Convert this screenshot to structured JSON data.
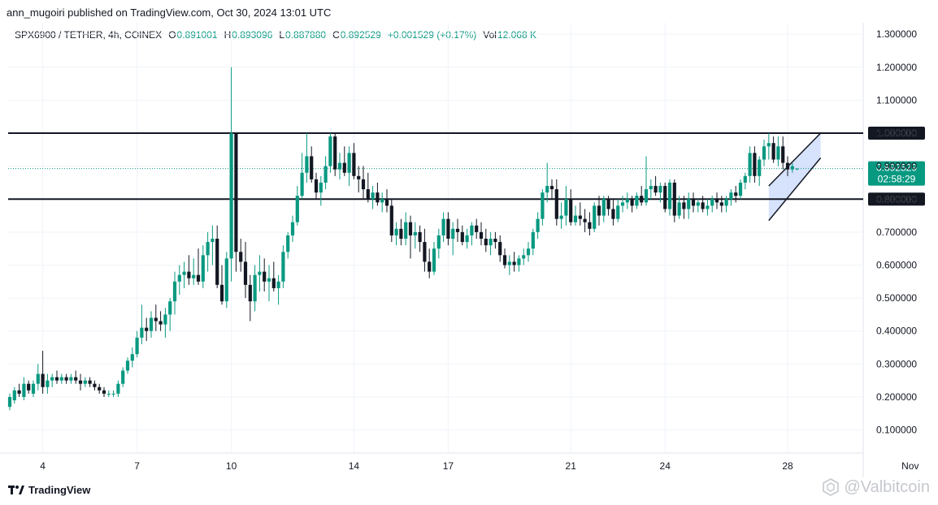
{
  "publisher_line": "ann_mugoiri published on TradingView.com, Oct 30, 2024 13:01 UTC",
  "legend": {
    "symbol": "SPX6900 / TETHER, 4h, COINEX",
    "open_label": "O",
    "open": "0.891001",
    "high_label": "H",
    "high": "0.893096",
    "low_label": "L",
    "low": "0.887880",
    "close_label": "C",
    "close": "0.892529",
    "change": "+0.001529 (+0.17%)",
    "vol_label": "Vol",
    "vol": "12.068 K"
  },
  "footer": {
    "brand": "TradingView",
    "logo_icon": "tradingview-logo-icon"
  },
  "watermark": {
    "text": "@Valbitcoin",
    "icon": "bitcoin-hex-icon"
  },
  "colors": {
    "up": "#089981",
    "down": "#131722",
    "grid": "#f0f3fa",
    "channel_fill": "#c9d8fb",
    "line": "#131722"
  },
  "chart_data": {
    "type": "candlestick",
    "title": "",
    "timeframe": "4h",
    "ylim": [
      0.03,
      1.33
    ],
    "y_ticks": [
      {
        "value": 0.1,
        "label": "0.100000"
      },
      {
        "value": 0.2,
        "label": "0.200000"
      },
      {
        "value": 0.3,
        "label": "0.300000"
      },
      {
        "value": 0.4,
        "label": "0.400000"
      },
      {
        "value": 0.5,
        "label": "0.500000"
      },
      {
        "value": 0.6,
        "label": "0.600000"
      },
      {
        "value": 0.7,
        "label": "0.700000"
      },
      {
        "value": 0.8,
        "label": "0.800000"
      },
      {
        "value": 0.9,
        "label": "0.900000"
      },
      {
        "value": 1.0,
        "label": "1.000000"
      },
      {
        "value": 1.1,
        "label": "1.100000"
      },
      {
        "value": 1.2,
        "label": "1.200000"
      },
      {
        "value": 1.3,
        "label": "1.300000"
      }
    ],
    "x_range": [
      0,
      190
    ],
    "x_ticks": [
      {
        "x": 7,
        "label": "4"
      },
      {
        "x": 27,
        "label": "7"
      },
      {
        "x": 47,
        "label": "10"
      },
      {
        "x": 73,
        "label": "14"
      },
      {
        "x": 93,
        "label": "17"
      },
      {
        "x": 119,
        "label": "21"
      },
      {
        "x": 139,
        "label": "24"
      },
      {
        "x": 165,
        "label": "28"
      },
      {
        "x": 191,
        "label": "Nov"
      }
    ],
    "horizontal_levels": [
      {
        "value": 1.0,
        "label": "1.000000"
      },
      {
        "value": 0.8,
        "label": "0.800000"
      }
    ],
    "last_price": {
      "value": 0.892529,
      "label": "0.892529",
      "countdown": "02:58:29"
    },
    "channel": {
      "lower_start": [
        161,
        0.735
      ],
      "lower_end": [
        172,
        0.925
      ],
      "upper_start": [
        161,
        0.84
      ],
      "upper_end": [
        172,
        1.0
      ]
    },
    "candles": [
      [
        0,
        0.17,
        0.21,
        0.16,
        0.2
      ],
      [
        1,
        0.19,
        0.23,
        0.18,
        0.22
      ],
      [
        2,
        0.22,
        0.24,
        0.2,
        0.21
      ],
      [
        3,
        0.2,
        0.26,
        0.19,
        0.24
      ],
      [
        4,
        0.24,
        0.25,
        0.21,
        0.22
      ],
      [
        5,
        0.21,
        0.25,
        0.2,
        0.24
      ],
      [
        6,
        0.24,
        0.3,
        0.22,
        0.27
      ],
      [
        7,
        0.27,
        0.34,
        0.21,
        0.23
      ],
      [
        8,
        0.23,
        0.27,
        0.21,
        0.25
      ],
      [
        9,
        0.25,
        0.27,
        0.23,
        0.26
      ],
      [
        10,
        0.26,
        0.28,
        0.24,
        0.25
      ],
      [
        11,
        0.25,
        0.27,
        0.24,
        0.26
      ],
      [
        12,
        0.26,
        0.27,
        0.24,
        0.25
      ],
      [
        13,
        0.25,
        0.27,
        0.24,
        0.26
      ],
      [
        14,
        0.26,
        0.28,
        0.24,
        0.25
      ],
      [
        15,
        0.25,
        0.27,
        0.22,
        0.24
      ],
      [
        16,
        0.24,
        0.26,
        0.23,
        0.25
      ],
      [
        17,
        0.25,
        0.26,
        0.23,
        0.24
      ],
      [
        18,
        0.24,
        0.25,
        0.22,
        0.23
      ],
      [
        19,
        0.23,
        0.24,
        0.21,
        0.22
      ],
      [
        20,
        0.22,
        0.23,
        0.2,
        0.21
      ],
      [
        21,
        0.21,
        0.22,
        0.2,
        0.21
      ],
      [
        22,
        0.21,
        0.22,
        0.2,
        0.21
      ],
      [
        23,
        0.21,
        0.25,
        0.2,
        0.24
      ],
      [
        24,
        0.24,
        0.29,
        0.23,
        0.28
      ],
      [
        25,
        0.28,
        0.32,
        0.27,
        0.31
      ],
      [
        26,
        0.31,
        0.35,
        0.29,
        0.33
      ],
      [
        27,
        0.33,
        0.4,
        0.32,
        0.38
      ],
      [
        28,
        0.38,
        0.48,
        0.36,
        0.41
      ],
      [
        29,
        0.41,
        0.44,
        0.37,
        0.4
      ],
      [
        30,
        0.4,
        0.46,
        0.38,
        0.44
      ],
      [
        31,
        0.44,
        0.48,
        0.4,
        0.43
      ],
      [
        32,
        0.43,
        0.46,
        0.4,
        0.42
      ],
      [
        33,
        0.42,
        0.47,
        0.38,
        0.45
      ],
      [
        34,
        0.45,
        0.5,
        0.4,
        0.49
      ],
      [
        35,
        0.49,
        0.58,
        0.45,
        0.55
      ],
      [
        36,
        0.55,
        0.6,
        0.51,
        0.57
      ],
      [
        37,
        0.57,
        0.61,
        0.53,
        0.58
      ],
      [
        38,
        0.58,
        0.63,
        0.54,
        0.56
      ],
      [
        39,
        0.56,
        0.62,
        0.54,
        0.57
      ],
      [
        40,
        0.57,
        0.65,
        0.54,
        0.55
      ],
      [
        41,
        0.55,
        0.66,
        0.53,
        0.63
      ],
      [
        42,
        0.63,
        0.7,
        0.58,
        0.67
      ],
      [
        43,
        0.67,
        0.72,
        0.6,
        0.68
      ],
      [
        44,
        0.68,
        0.72,
        0.53,
        0.54
      ],
      [
        45,
        0.54,
        0.6,
        0.48,
        0.49
      ],
      [
        46,
        0.49,
        0.64,
        0.47,
        0.62
      ],
      [
        47,
        0.62,
        1.2,
        0.55,
        1.0
      ],
      [
        48,
        1.0,
        1.0,
        0.58,
        0.64
      ],
      [
        49,
        0.64,
        0.68,
        0.58,
        0.61
      ],
      [
        50,
        0.61,
        0.67,
        0.5,
        0.54
      ],
      [
        51,
        0.54,
        0.57,
        0.43,
        0.49
      ],
      [
        52,
        0.49,
        0.6,
        0.46,
        0.57
      ],
      [
        53,
        0.57,
        0.63,
        0.52,
        0.58
      ],
      [
        54,
        0.58,
        0.62,
        0.52,
        0.55
      ],
      [
        55,
        0.55,
        0.6,
        0.49,
        0.56
      ],
      [
        56,
        0.56,
        0.61,
        0.52,
        0.53
      ],
      [
        57,
        0.53,
        0.57,
        0.48,
        0.55
      ],
      [
        58,
        0.55,
        0.66,
        0.53,
        0.64
      ],
      [
        59,
        0.64,
        0.7,
        0.62,
        0.69
      ],
      [
        60,
        0.69,
        0.75,
        0.67,
        0.73
      ],
      [
        61,
        0.73,
        0.84,
        0.72,
        0.81
      ],
      [
        62,
        0.81,
        0.94,
        0.8,
        0.88
      ],
      [
        63,
        0.88,
        1.0,
        0.85,
        0.93
      ],
      [
        64,
        0.93,
        0.96,
        0.85,
        0.86
      ],
      [
        65,
        0.86,
        0.88,
        0.8,
        0.82
      ],
      [
        66,
        0.82,
        0.87,
        0.78,
        0.85
      ],
      [
        67,
        0.85,
        0.93,
        0.83,
        0.9
      ],
      [
        68,
        0.9,
        1.0,
        0.88,
        0.99
      ],
      [
        69,
        0.99,
        1.0,
        0.87,
        0.89
      ],
      [
        70,
        0.89,
        0.94,
        0.86,
        0.91
      ],
      [
        71,
        0.91,
        0.96,
        0.87,
        0.88
      ],
      [
        72,
        0.88,
        0.96,
        0.84,
        0.94
      ],
      [
        73,
        0.94,
        0.97,
        0.86,
        0.87
      ],
      [
        74,
        0.87,
        0.9,
        0.82,
        0.86
      ],
      [
        75,
        0.86,
        0.9,
        0.8,
        0.83
      ],
      [
        76,
        0.83,
        0.88,
        0.79,
        0.8
      ],
      [
        77,
        0.8,
        0.84,
        0.77,
        0.82
      ],
      [
        78,
        0.82,
        0.85,
        0.78,
        0.79
      ],
      [
        79,
        0.79,
        0.82,
        0.76,
        0.8
      ],
      [
        80,
        0.8,
        0.83,
        0.76,
        0.78
      ],
      [
        81,
        0.78,
        0.8,
        0.67,
        0.69
      ],
      [
        82,
        0.69,
        0.73,
        0.66,
        0.71
      ],
      [
        83,
        0.71,
        0.74,
        0.66,
        0.68
      ],
      [
        84,
        0.68,
        0.76,
        0.66,
        0.73
      ],
      [
        85,
        0.73,
        0.75,
        0.62,
        0.69
      ],
      [
        86,
        0.69,
        0.73,
        0.65,
        0.7
      ],
      [
        87,
        0.7,
        0.72,
        0.64,
        0.67
      ],
      [
        88,
        0.67,
        0.71,
        0.58,
        0.61
      ],
      [
        89,
        0.61,
        0.65,
        0.56,
        0.58
      ],
      [
        90,
        0.58,
        0.67,
        0.57,
        0.65
      ],
      [
        91,
        0.65,
        0.71,
        0.62,
        0.69
      ],
      [
        92,
        0.69,
        0.76,
        0.67,
        0.74
      ],
      [
        93,
        0.74,
        0.76,
        0.66,
        0.68
      ],
      [
        94,
        0.68,
        0.73,
        0.63,
        0.71
      ],
      [
        95,
        0.71,
        0.74,
        0.67,
        0.7
      ],
      [
        96,
        0.7,
        0.72,
        0.66,
        0.67
      ],
      [
        97,
        0.67,
        0.71,
        0.65,
        0.69
      ],
      [
        98,
        0.69,
        0.73,
        0.66,
        0.72
      ],
      [
        99,
        0.72,
        0.74,
        0.68,
        0.7
      ],
      [
        100,
        0.7,
        0.73,
        0.66,
        0.68
      ],
      [
        101,
        0.68,
        0.71,
        0.64,
        0.66
      ],
      [
        102,
        0.66,
        0.7,
        0.63,
        0.68
      ],
      [
        103,
        0.68,
        0.7,
        0.65,
        0.67
      ],
      [
        104,
        0.67,
        0.69,
        0.61,
        0.63
      ],
      [
        105,
        0.63,
        0.65,
        0.59,
        0.6
      ],
      [
        106,
        0.6,
        0.63,
        0.57,
        0.61
      ],
      [
        107,
        0.61,
        0.64,
        0.58,
        0.6
      ],
      [
        108,
        0.6,
        0.63,
        0.58,
        0.62
      ],
      [
        109,
        0.62,
        0.65,
        0.6,
        0.63
      ],
      [
        110,
        0.63,
        0.67,
        0.61,
        0.65
      ],
      [
        111,
        0.65,
        0.71,
        0.63,
        0.7
      ],
      [
        112,
        0.7,
        0.76,
        0.68,
        0.74
      ],
      [
        113,
        0.74,
        0.83,
        0.72,
        0.82
      ],
      [
        114,
        0.82,
        0.91,
        0.79,
        0.84
      ],
      [
        115,
        0.84,
        0.86,
        0.8,
        0.83
      ],
      [
        116,
        0.83,
        0.86,
        0.72,
        0.74
      ],
      [
        117,
        0.74,
        0.79,
        0.71,
        0.75
      ],
      [
        118,
        0.75,
        0.84,
        0.72,
        0.8
      ],
      [
        119,
        0.8,
        0.83,
        0.72,
        0.73
      ],
      [
        120,
        0.73,
        0.78,
        0.72,
        0.75
      ],
      [
        121,
        0.75,
        0.79,
        0.72,
        0.74
      ],
      [
        122,
        0.74,
        0.77,
        0.7,
        0.73
      ],
      [
        123,
        0.73,
        0.76,
        0.69,
        0.71
      ],
      [
        124,
        0.71,
        0.79,
        0.7,
        0.78
      ],
      [
        125,
        0.78,
        0.81,
        0.72,
        0.75
      ],
      [
        126,
        0.75,
        0.81,
        0.73,
        0.8
      ],
      [
        127,
        0.8,
        0.81,
        0.75,
        0.77
      ],
      [
        128,
        0.77,
        0.8,
        0.72,
        0.74
      ],
      [
        129,
        0.74,
        0.8,
        0.73,
        0.78
      ],
      [
        130,
        0.78,
        0.81,
        0.76,
        0.79
      ],
      [
        131,
        0.79,
        0.82,
        0.77,
        0.8
      ],
      [
        132,
        0.8,
        0.81,
        0.76,
        0.78
      ],
      [
        133,
        0.78,
        0.82,
        0.77,
        0.81
      ],
      [
        134,
        0.81,
        0.84,
        0.78,
        0.79
      ],
      [
        135,
        0.79,
        0.93,
        0.78,
        0.83
      ],
      [
        136,
        0.83,
        0.86,
        0.8,
        0.84
      ],
      [
        137,
        0.84,
        0.87,
        0.81,
        0.82
      ],
      [
        138,
        0.82,
        0.85,
        0.79,
        0.84
      ],
      [
        139,
        0.84,
        0.85,
        0.76,
        0.77
      ],
      [
        140,
        0.77,
        0.86,
        0.75,
        0.85
      ],
      [
        141,
        0.85,
        0.86,
        0.73,
        0.75
      ],
      [
        142,
        0.75,
        0.81,
        0.74,
        0.79
      ],
      [
        143,
        0.79,
        0.81,
        0.74,
        0.77
      ],
      [
        144,
        0.77,
        0.82,
        0.74,
        0.8
      ],
      [
        145,
        0.8,
        0.82,
        0.76,
        0.78
      ],
      [
        146,
        0.78,
        0.8,
        0.76,
        0.79
      ],
      [
        147,
        0.79,
        0.81,
        0.76,
        0.77
      ],
      [
        148,
        0.77,
        0.8,
        0.75,
        0.78
      ],
      [
        149,
        0.78,
        0.81,
        0.76,
        0.8
      ],
      [
        150,
        0.8,
        0.82,
        0.77,
        0.79
      ],
      [
        151,
        0.79,
        0.81,
        0.76,
        0.78
      ],
      [
        152,
        0.78,
        0.81,
        0.76,
        0.8
      ],
      [
        153,
        0.8,
        0.83,
        0.78,
        0.82
      ],
      [
        154,
        0.82,
        0.84,
        0.79,
        0.81
      ],
      [
        155,
        0.81,
        0.86,
        0.8,
        0.85
      ],
      [
        156,
        0.85,
        0.88,
        0.83,
        0.87
      ],
      [
        157,
        0.87,
        0.96,
        0.85,
        0.94
      ],
      [
        158,
        0.94,
        0.96,
        0.85,
        0.87
      ],
      [
        159,
        0.87,
        0.93,
        0.84,
        0.92
      ],
      [
        160,
        0.92,
        0.98,
        0.9,
        0.96
      ],
      [
        161,
        0.96,
        1.0,
        0.92,
        0.97
      ],
      [
        162,
        0.97,
        0.99,
        0.91,
        0.92
      ],
      [
        163,
        0.92,
        0.99,
        0.9,
        0.96
      ],
      [
        164,
        0.96,
        0.99,
        0.89,
        0.91
      ],
      [
        165,
        0.91,
        0.93,
        0.87,
        0.89
      ],
      [
        166,
        0.89,
        0.91,
        0.88,
        0.9
      ],
      [
        167,
        0.891,
        0.893,
        0.888,
        0.8925
      ]
    ]
  }
}
